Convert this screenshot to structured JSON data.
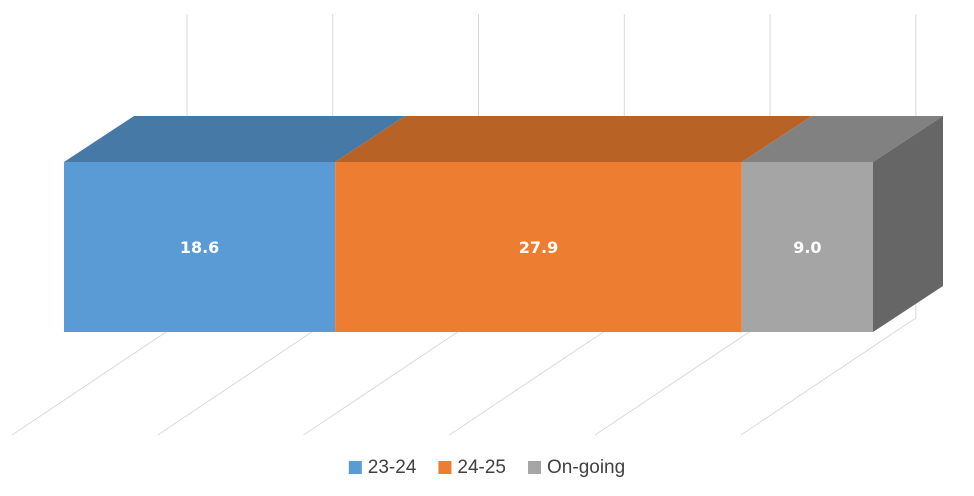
{
  "chart_data": {
    "type": "bar",
    "orientation": "horizontal",
    "stacked": true,
    "three_d": true,
    "title": "",
    "xlabel": "",
    "ylabel": "",
    "categories": [
      ""
    ],
    "xlim": [
      0,
      55.5
    ],
    "grid": true,
    "legend_position": "bottom",
    "series": [
      {
        "name": "23-24",
        "values": [
          18.6
        ],
        "label": "18.6",
        "color": "#5b9bd5"
      },
      {
        "name": "24-25",
        "values": [
          27.9
        ],
        "label": "27.9",
        "color": "#ed7d31"
      },
      {
        "name": "On-going",
        "values": [
          9.0
        ],
        "label": "9.0",
        "color": "#a5a5a5"
      }
    ]
  }
}
